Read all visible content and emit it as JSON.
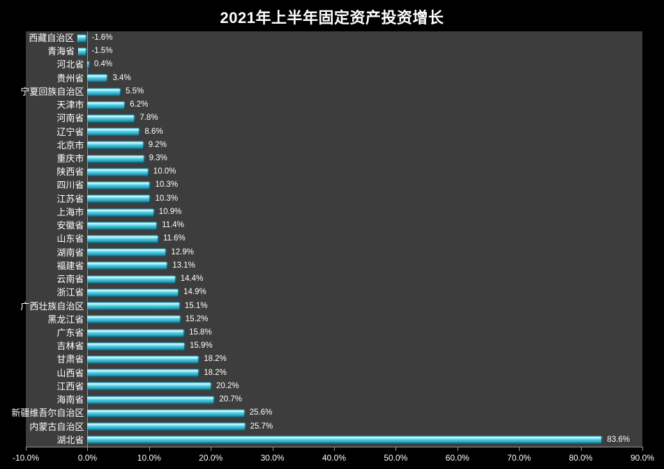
{
  "title": "2021年上半年固定资产投资增长",
  "chart_data": {
    "type": "bar",
    "orientation": "horizontal",
    "title": "2021年上半年固定资产投资增长",
    "categories": [
      "西藏自治区",
      "青海省",
      "河北省",
      "贵州省",
      "宁夏回族自治区",
      "天津市",
      "河南省",
      "辽宁省",
      "北京市",
      "重庆市",
      "陕西省",
      "四川省",
      "江苏省",
      "上海市",
      "安徽省",
      "山东省",
      "湖南省",
      "福建省",
      "云南省",
      "浙江省",
      "广西壮族自治区",
      "黑龙江省",
      "广东省",
      "吉林省",
      "甘肃省",
      "山西省",
      "江西省",
      "海南省",
      "新疆维吾尔自治区",
      "内蒙古自治区",
      "湖北省"
    ],
    "values": [
      -1.6,
      -1.5,
      0.4,
      3.4,
      5.5,
      6.2,
      7.8,
      8.6,
      9.2,
      9.3,
      10.0,
      10.3,
      10.3,
      10.9,
      11.4,
      11.6,
      12.9,
      13.1,
      14.4,
      14.9,
      15.1,
      15.2,
      15.8,
      15.9,
      18.2,
      18.2,
      20.2,
      20.7,
      25.6,
      25.7,
      83.6
    ],
    "value_labels": [
      "-1.6%",
      "-1.5%",
      "0.4%",
      "3.4%",
      "5.5%",
      "6.2%",
      "7.8%",
      "8.6%",
      "9.2%",
      "9.3%",
      "10.0%",
      "10.3%",
      "10.3%",
      "10.9%",
      "11.4%",
      "11.6%",
      "12.9%",
      "13.1%",
      "14.4%",
      "14.9%",
      "15.1%",
      "15.2%",
      "15.8%",
      "15.9%",
      "18.2%",
      "18.2%",
      "20.2%",
      "20.7%",
      "25.6%",
      "25.7%",
      "83.6%"
    ],
    "x_ticks": [
      {
        "value": -10,
        "label": "-10.0%"
      },
      {
        "value": 0,
        "label": "0.0%"
      },
      {
        "value": 10,
        "label": "10.0%"
      },
      {
        "value": 20,
        "label": "20.0%"
      },
      {
        "value": 30,
        "label": "30.0%"
      },
      {
        "value": 40,
        "label": "40.0%"
      },
      {
        "value": 50,
        "label": "50.0%"
      },
      {
        "value": 60,
        "label": "60.0%"
      },
      {
        "value": 70,
        "label": "70.0%"
      },
      {
        "value": 80,
        "label": "80.0%"
      },
      {
        "value": 90,
        "label": "90.0%"
      }
    ],
    "xlim": [
      -10,
      90
    ],
    "grid": false,
    "legend": false,
    "colors": {
      "background": "#000000",
      "plot_background": "#3D3D3D",
      "bar_highlight": "#BDF3FB",
      "bar_main": "#3EC1D9",
      "bar_shadow": "#145E73",
      "text": "#FFFFFF",
      "axis_line": "#9A9A9A"
    }
  }
}
